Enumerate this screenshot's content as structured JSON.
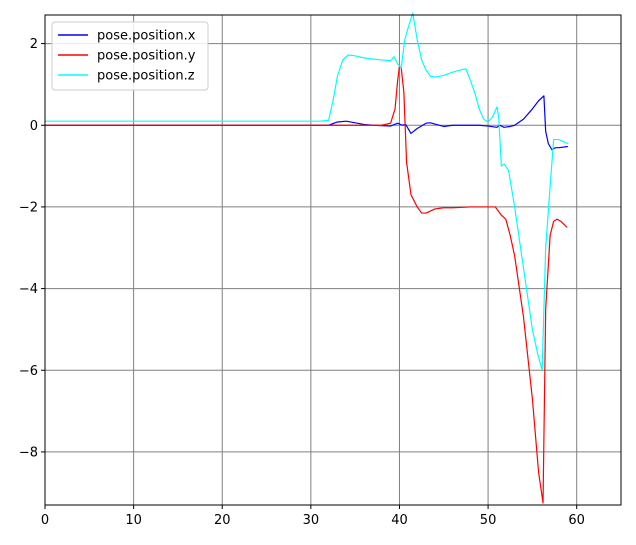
{
  "chart_data": {
    "type": "line",
    "title": "",
    "xlabel": "",
    "ylabel": "",
    "xlim": [
      0,
      65
    ],
    "ylim": [
      -9.3,
      2.7
    ],
    "xticks": [
      0,
      10,
      20,
      30,
      40,
      50,
      60
    ],
    "yticks": [
      2,
      0,
      -2,
      -4,
      -6,
      -8
    ],
    "xtick_labels": [
      "0",
      "10",
      "20",
      "30",
      "40",
      "50",
      "60"
    ],
    "ytick_labels": [
      "2",
      "0",
      "−2",
      "−4",
      "−6",
      "−8"
    ],
    "grid": true,
    "legend_position": "top-left",
    "series": [
      {
        "name": "pose.position.x",
        "color": "#0000ff",
        "points": [
          [
            0,
            0
          ],
          [
            32,
            0
          ],
          [
            33,
            0.08
          ],
          [
            34,
            0.1
          ],
          [
            35,
            0.06
          ],
          [
            36,
            0.02
          ],
          [
            37,
            0
          ],
          [
            39,
            -0.02
          ],
          [
            39.8,
            0.05
          ],
          [
            40.3,
            0
          ],
          [
            40.7,
            0.02
          ],
          [
            41.3,
            -0.2
          ],
          [
            42,
            -0.08
          ],
          [
            43,
            0.05
          ],
          [
            43.5,
            0.06
          ],
          [
            44,
            0.03
          ],
          [
            45,
            -0.03
          ],
          [
            46,
            0
          ],
          [
            47,
            0
          ],
          [
            49,
            0
          ],
          [
            50,
            -0.02
          ],
          [
            51,
            -0.05
          ],
          [
            51.3,
            0
          ],
          [
            51.8,
            -0.05
          ],
          [
            52.5,
            -0.03
          ],
          [
            53,
            0
          ],
          [
            54,
            0.15
          ],
          [
            55,
            0.4
          ],
          [
            55.7,
            0.6
          ],
          [
            56.3,
            0.72
          ],
          [
            56.5,
            -0.15
          ],
          [
            56.8,
            -0.45
          ],
          [
            57.2,
            -0.6
          ],
          [
            57.6,
            -0.55
          ],
          [
            58,
            -0.55
          ],
          [
            59,
            -0.52
          ]
        ]
      },
      {
        "name": "pose.position.y",
        "color": "#ff0000",
        "points": [
          [
            0,
            0
          ],
          [
            32,
            0
          ],
          [
            36,
            0
          ],
          [
            38,
            0
          ],
          [
            39,
            0.05
          ],
          [
            39.5,
            0.4
          ],
          [
            39.8,
            1.1
          ],
          [
            40,
            1.45
          ],
          [
            40.2,
            1.4
          ],
          [
            40.5,
            0.8
          ],
          [
            40.8,
            -0.9
          ],
          [
            41.3,
            -1.7
          ],
          [
            42,
            -2
          ],
          [
            42.5,
            -2.15
          ],
          [
            43,
            -2.15
          ],
          [
            44,
            -2.05
          ],
          [
            45,
            -2.02
          ],
          [
            46,
            -2.02
          ],
          [
            48,
            -2
          ],
          [
            50,
            -2
          ],
          [
            50.8,
            -2
          ],
          [
            51.5,
            -2.2
          ],
          [
            52,
            -2.3
          ],
          [
            52.5,
            -2.7
          ],
          [
            53,
            -3.2
          ],
          [
            54,
            -4.7
          ],
          [
            55,
            -6.7
          ],
          [
            55.7,
            -8.5
          ],
          [
            56.2,
            -9.25
          ],
          [
            56.5,
            -4.5
          ],
          [
            57,
            -2.7
          ],
          [
            57.4,
            -2.35
          ],
          [
            57.8,
            -2.3
          ],
          [
            58.2,
            -2.35
          ],
          [
            58.9,
            -2.5
          ]
        ]
      },
      {
        "name": "pose.position.z",
        "color": "#00ffff",
        "points": [
          [
            0,
            0.1
          ],
          [
            31,
            0.1
          ],
          [
            32,
            0.12
          ],
          [
            32.5,
            0.6
          ],
          [
            33,
            1.2
          ],
          [
            33.6,
            1.6
          ],
          [
            34.2,
            1.72
          ],
          [
            35,
            1.7
          ],
          [
            36,
            1.65
          ],
          [
            37,
            1.62
          ],
          [
            38,
            1.6
          ],
          [
            39,
            1.58
          ],
          [
            39.4,
            1.68
          ],
          [
            39.8,
            1.5
          ],
          [
            40.2,
            1.4
          ],
          [
            40.6,
            2.1
          ],
          [
            41,
            2.4
          ],
          [
            41.5,
            2.75
          ],
          [
            42,
            2.1
          ],
          [
            42.5,
            1.6
          ],
          [
            43,
            1.35
          ],
          [
            43.5,
            1.2
          ],
          [
            44,
            1.18
          ],
          [
            45,
            1.22
          ],
          [
            46,
            1.3
          ],
          [
            47,
            1.36
          ],
          [
            47.5,
            1.38
          ],
          [
            48,
            1.1
          ],
          [
            48.5,
            0.8
          ],
          [
            49,
            0.4
          ],
          [
            49.5,
            0.15
          ],
          [
            50,
            0.08
          ],
          [
            50.5,
            0.2
          ],
          [
            51,
            0.45
          ],
          [
            51.2,
            0.2
          ],
          [
            51.5,
            -1
          ],
          [
            51.8,
            -0.95
          ],
          [
            52.3,
            -1.1
          ],
          [
            53,
            -2
          ],
          [
            54,
            -3.5
          ],
          [
            55,
            -5
          ],
          [
            55.6,
            -5.6
          ],
          [
            56.1,
            -6
          ],
          [
            56.5,
            -3
          ],
          [
            57,
            -1.5
          ],
          [
            57.4,
            -0.35
          ],
          [
            58,
            -0.35
          ],
          [
            58.5,
            -0.4
          ],
          [
            59,
            -0.45
          ]
        ]
      }
    ]
  }
}
